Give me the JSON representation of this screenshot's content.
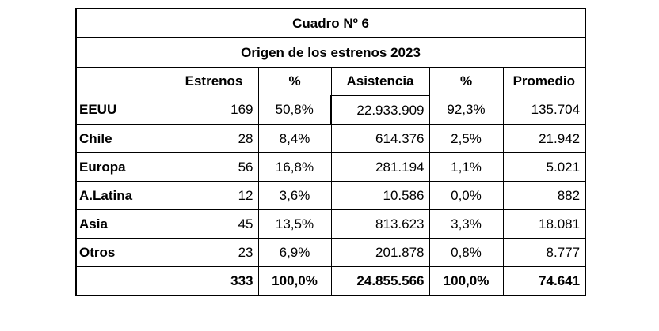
{
  "table": {
    "title": "Cuadro Nº 6",
    "subtitle": "Origen de los estrenos 2023",
    "headers": [
      "",
      "Estrenos",
      "%",
      "Asistencia",
      "%",
      "Promedio"
    ],
    "rows": [
      {
        "origen": "EEUU",
        "estrenos": "169",
        "pct_estrenos": "50,8%",
        "asistencia": "22.933.909",
        "pct_asistencia": "92,3%",
        "promedio": "135.704"
      },
      {
        "origen": "Chile",
        "estrenos": "28",
        "pct_estrenos": "8,4%",
        "asistencia": "614.376",
        "pct_asistencia": "2,5%",
        "promedio": "21.942"
      },
      {
        "origen": "Europa",
        "estrenos": "56",
        "pct_estrenos": "16,8%",
        "asistencia": "281.194",
        "pct_asistencia": "1,1%",
        "promedio": "5.021"
      },
      {
        "origen": "A.Latina",
        "estrenos": "12",
        "pct_estrenos": "3,6%",
        "asistencia": "10.586",
        "pct_asistencia": "0,0%",
        "promedio": "882"
      },
      {
        "origen": "Asia",
        "estrenos": "45",
        "pct_estrenos": "13,5%",
        "asistencia": "813.623",
        "pct_asistencia": "3,3%",
        "promedio": "18.081"
      },
      {
        "origen": "Otros",
        "estrenos": "23",
        "pct_estrenos": "6,9%",
        "asistencia": "201.878",
        "pct_asistencia": "0,8%",
        "promedio": "8.777"
      }
    ],
    "total": {
      "origen": "",
      "estrenos": "333",
      "pct_estrenos": "100,0%",
      "asistencia": "24.855.566",
      "pct_asistencia": "100,0%",
      "promedio": "74.641"
    }
  }
}
